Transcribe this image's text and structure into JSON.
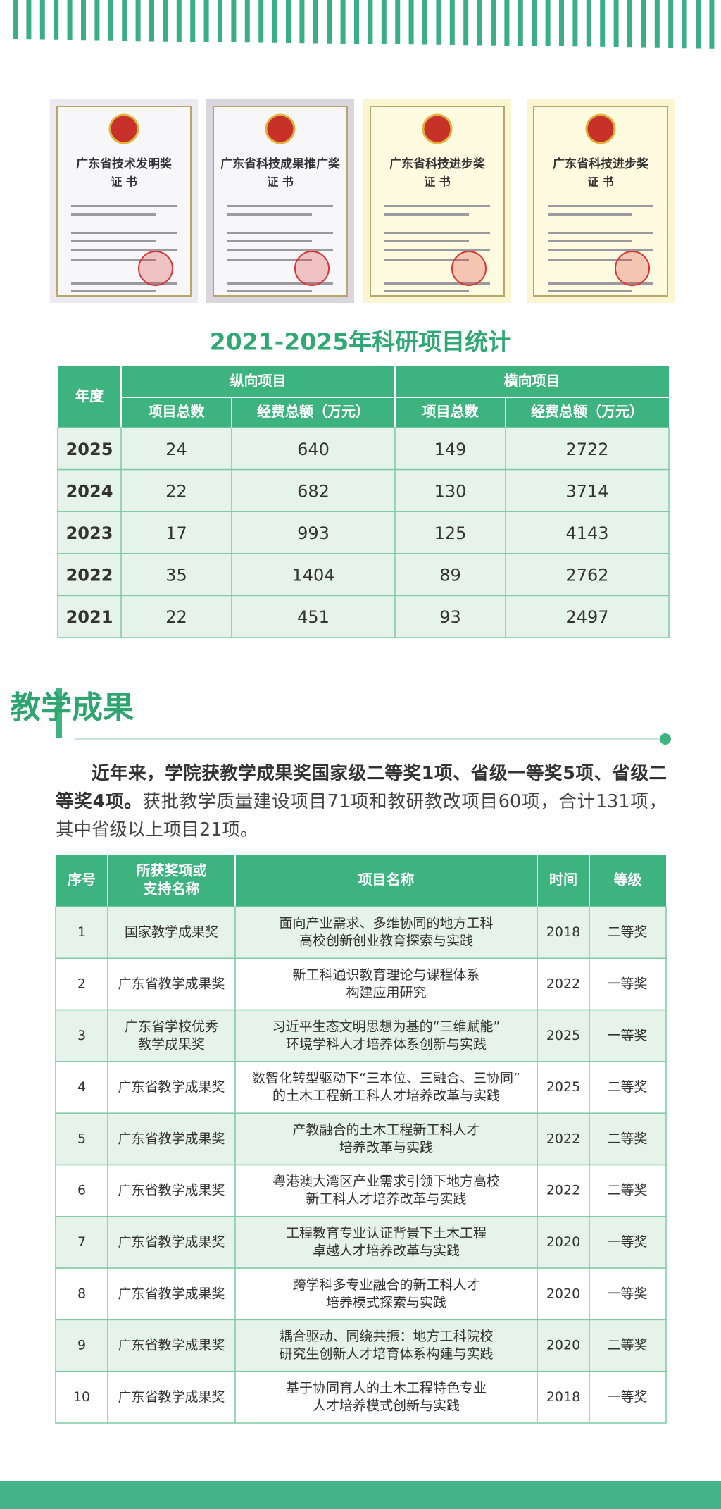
{
  "certificates": [
    {
      "title": "广东省技术发明奖",
      "subtitle": "证 书"
    },
    {
      "title": "广东省科技成果推广奖",
      "subtitle": "证 书"
    },
    {
      "title": "广东省科技进步奖",
      "subtitle": "证 书"
    },
    {
      "title": "广东省科技进步奖",
      "subtitle": "证 书"
    }
  ],
  "stats": {
    "title": "2021-2025年科研项目统计",
    "header": {
      "year": "年度",
      "groups": [
        "纵向项目",
        "横向项目"
      ],
      "columns": [
        "项目总数",
        "经费总额（万元）",
        "项目总数",
        "经费总额（万元）"
      ]
    },
    "rows": [
      [
        2025,
        24,
        640,
        149,
        2722
      ],
      [
        2024,
        22,
        682,
        130,
        3714
      ],
      [
        2023,
        17,
        993,
        125,
        4143
      ],
      [
        2022,
        35,
        1404,
        89,
        2762
      ],
      [
        2021,
        22,
        451,
        93,
        2497
      ]
    ]
  },
  "teaching": {
    "heading": "教学成果",
    "paragraph": {
      "bold": "近年来，学院获教学成果奖国家级二等奖1项、省级一等奖5项、省级二等奖4项。",
      "normal": "获批教学质量建设项目71项和教研教改项目60项，合计131项，其中省级以上项目21项。"
    },
    "table": {
      "header": [
        [
          "序号"
        ],
        [
          "所获奖项或",
          "支持名称"
        ],
        [
          "项目名称"
        ],
        [
          "时间"
        ],
        [
          "等级"
        ]
      ],
      "rows": [
        {
          "no": 1,
          "award": [
            "国家教学成果奖"
          ],
          "project": [
            "面向产业需求、多维协同的地方工科",
            "高校创新创业教育探索与实践"
          ],
          "year": 2018,
          "grade": "二等奖"
        },
        {
          "no": 2,
          "award": [
            "广东省教学成果奖"
          ],
          "project": [
            "新工科通识教育理论与课程体系",
            "构建应用研究"
          ],
          "year": 2022,
          "grade": "一等奖"
        },
        {
          "no": 3,
          "award": [
            "广东省学校优秀",
            "教学成果奖"
          ],
          "project": [
            "习近平生态文明思想为基的“三维赋能”",
            "环境学科人才培养体系创新与实践"
          ],
          "year": 2025,
          "grade": "一等奖"
        },
        {
          "no": 4,
          "award": [
            "广东省教学成果奖"
          ],
          "project": [
            "数智化转型驱动下“三本位、三融合、三协同”",
            "的土木工程新工科人才培养改革与实践"
          ],
          "year": 2025,
          "grade": "二等奖"
        },
        {
          "no": 5,
          "award": [
            "广东省教学成果奖"
          ],
          "project": [
            "产教融合的土木工程新工科人才",
            "培养改革与实践"
          ],
          "year": 2022,
          "grade": "二等奖"
        },
        {
          "no": 6,
          "award": [
            "广东省教学成果奖"
          ],
          "project": [
            "粤港澳大湾区产业需求引领下地方高校",
            "新工科人才培养改革与实践"
          ],
          "year": 2022,
          "grade": "二等奖"
        },
        {
          "no": 7,
          "award": [
            "广东省教学成果奖"
          ],
          "project": [
            "工程教育专业认证背景下土木工程",
            "卓越人才培养改革与实践"
          ],
          "year": 2020,
          "grade": "一等奖"
        },
        {
          "no": 8,
          "award": [
            "广东省教学成果奖"
          ],
          "project": [
            "跨学科多专业融合的新工科人才",
            "培养模式探索与实践"
          ],
          "year": 2020,
          "grade": "一等奖"
        },
        {
          "no": 9,
          "award": [
            "广东省教学成果奖"
          ],
          "project": [
            "耦合驱动、同绕共振：地方工科院校",
            "研究生创新人才培育体系构建与实践"
          ],
          "year": 2020,
          "grade": "二等奖"
        },
        {
          "no": 10,
          "award": [
            "广东省教学成果奖"
          ],
          "project": [
            "基于协同育人的土木工程特色专业",
            "人才培养模式创新与实践"
          ],
          "year": 2018,
          "grade": "一等奖"
        }
      ]
    }
  }
}
